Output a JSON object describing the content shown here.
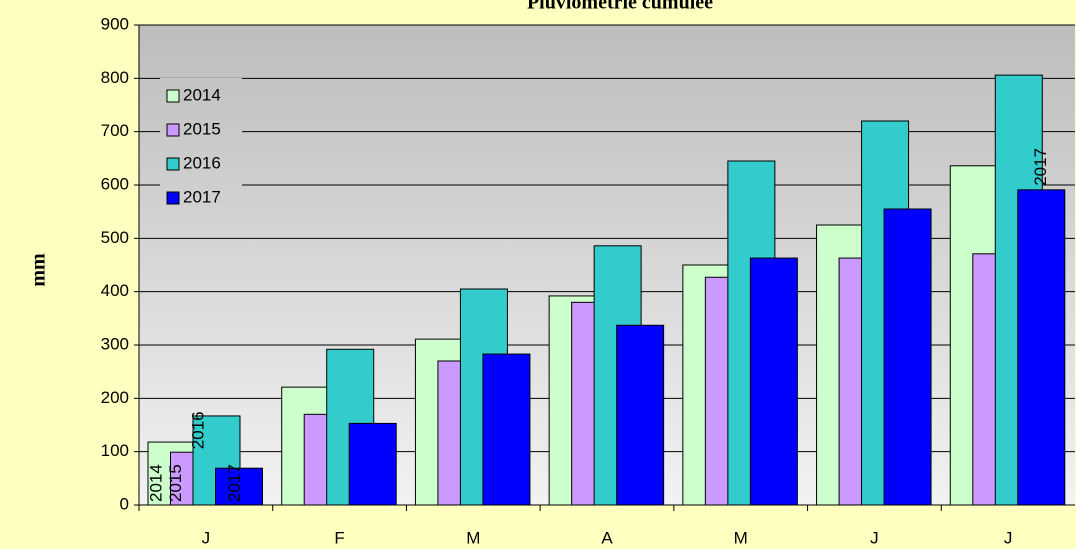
{
  "chart_data": {
    "type": "bar",
    "title": "Pluviométrie cumulée",
    "y_label": "mm",
    "categories": [
      "J",
      "F",
      "M",
      "A",
      "M",
      "J",
      "J"
    ],
    "series": [
      {
        "name": "2014",
        "color": "#ccffcc",
        "values": [
          118,
          221,
          311,
          392,
          450,
          525,
          636
        ]
      },
      {
        "name": "2015",
        "color": "#cc99ff",
        "values": [
          99,
          170,
          270,
          380,
          427,
          463,
          471
        ]
      },
      {
        "name": "2016",
        "color": "#33cccc",
        "values": [
          167,
          292,
          405,
          486,
          645,
          720,
          806
        ]
      },
      {
        "name": "2017",
        "color": "#0000ff",
        "values": [
          69,
          153,
          283,
          337,
          463,
          555,
          591
        ]
      }
    ],
    "ylim": [
      0,
      900
    ],
    "yticks": [
      0,
      100,
      200,
      300,
      400,
      500,
      600,
      700,
      800,
      900
    ],
    "grid": true,
    "legend": "upper left"
  }
}
